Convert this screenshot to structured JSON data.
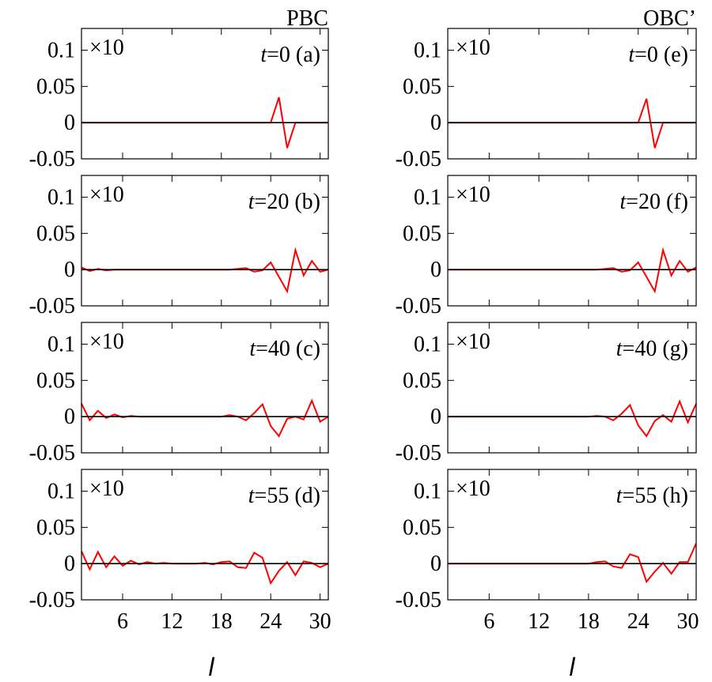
{
  "figure": {
    "column_titles": [
      "PBC",
      "OBC’"
    ],
    "xlabel": "l",
    "scale_label": "×10",
    "ytick_labels": [
      "0.1",
      "0.05",
      "0",
      "-0.05"
    ],
    "xtick_labels": [
      "6",
      "12",
      "18",
      "24",
      "30"
    ]
  },
  "chart_data": [
    {
      "type": "line",
      "panel": "(a)",
      "time_label": "t=0",
      "boundary": "PBC",
      "scale": "×10",
      "xlim": [
        1,
        31
      ],
      "ylim": [
        -0.05,
        0.13
      ],
      "xticks": [
        6,
        12,
        18,
        24,
        30
      ],
      "yticks": [
        0.1,
        0.05,
        0,
        -0.05
      ],
      "series": [
        {
          "color": "#ff0000",
          "x": [
            1,
            2,
            3,
            4,
            5,
            6,
            7,
            8,
            9,
            10,
            11,
            12,
            13,
            14,
            15,
            16,
            17,
            18,
            19,
            20,
            21,
            22,
            23,
            24,
            25,
            26,
            27,
            28,
            29,
            30,
            31
          ],
          "y": [
            0,
            0,
            0,
            0,
            0,
            0,
            0,
            0,
            0,
            0,
            0,
            0,
            0,
            0,
            0,
            0,
            0,
            0,
            0,
            0,
            0,
            0,
            0,
            0,
            0.035,
            -0.035,
            0,
            0,
            0,
            0,
            0
          ]
        },
        {
          "color": "#000000",
          "x": [
            1,
            31
          ],
          "y": [
            0,
            0
          ]
        }
      ]
    },
    {
      "type": "line",
      "panel": "(b)",
      "time_label": "t=20",
      "boundary": "PBC",
      "scale": "×10",
      "xlim": [
        1,
        31
      ],
      "ylim": [
        -0.05,
        0.13
      ],
      "xticks": [
        6,
        12,
        18,
        24,
        30
      ],
      "yticks": [
        0.1,
        0.05,
        0,
        -0.05
      ],
      "series": [
        {
          "color": "#ff0000",
          "x": [
            1,
            2,
            3,
            4,
            5,
            6,
            7,
            8,
            9,
            10,
            11,
            12,
            13,
            14,
            15,
            16,
            17,
            18,
            19,
            20,
            21,
            22,
            23,
            24,
            25,
            26,
            27,
            28,
            29,
            30,
            31
          ],
          "y": [
            0.003,
            -0.002,
            0.001,
            -0.001,
            0,
            0,
            0,
            0,
            0,
            0,
            0,
            0,
            0,
            0,
            0,
            0,
            0,
            0,
            0,
            0.001,
            0.002,
            -0.003,
            -0.001,
            0.01,
            -0.01,
            -0.03,
            0.027,
            -0.008,
            0.012,
            -0.003,
            0
          ]
        },
        {
          "color": "#000000",
          "x": [
            1,
            31
          ],
          "y": [
            0,
            0
          ]
        }
      ]
    },
    {
      "type": "line",
      "panel": "(c)",
      "time_label": "t=40",
      "boundary": "PBC",
      "scale": "×10",
      "xlim": [
        1,
        31
      ],
      "ylim": [
        -0.05,
        0.13
      ],
      "xticks": [
        6,
        12,
        18,
        24,
        30
      ],
      "yticks": [
        0.1,
        0.05,
        0,
        -0.05
      ],
      "series": [
        {
          "color": "#ff0000",
          "x": [
            1,
            2,
            3,
            4,
            5,
            6,
            7,
            8,
            9,
            10,
            11,
            12,
            13,
            14,
            15,
            16,
            17,
            18,
            19,
            20,
            21,
            22,
            23,
            24,
            25,
            26,
            27,
            28,
            29,
            30,
            31
          ],
          "y": [
            0.018,
            -0.005,
            0.008,
            -0.002,
            0.003,
            -0.001,
            0.001,
            0,
            0,
            0,
            0,
            0,
            0,
            0,
            0,
            0,
            0,
            0,
            0.002,
            0,
            -0.005,
            0.005,
            0.017,
            -0.013,
            -0.027,
            -0.003,
            0,
            -0.004,
            0.022,
            -0.007,
            0
          ]
        },
        {
          "color": "#000000",
          "x": [
            1,
            31
          ],
          "y": [
            0,
            0
          ]
        }
      ]
    },
    {
      "type": "line",
      "panel": "(d)",
      "time_label": "t=55",
      "boundary": "PBC",
      "scale": "×10",
      "xlim": [
        1,
        31
      ],
      "ylim": [
        -0.05,
        0.13
      ],
      "xticks": [
        6,
        12,
        18,
        24,
        30
      ],
      "yticks": [
        0.1,
        0.05,
        0,
        -0.05
      ],
      "series": [
        {
          "color": "#ff0000",
          "x": [
            1,
            2,
            3,
            4,
            5,
            6,
            7,
            8,
            9,
            10,
            11,
            12,
            13,
            14,
            15,
            16,
            17,
            18,
            19,
            20,
            21,
            22,
            23,
            24,
            25,
            26,
            27,
            28,
            29,
            30,
            31
          ],
          "y": [
            0.017,
            -0.008,
            0.016,
            -0.005,
            0.01,
            -0.003,
            0.004,
            -0.001,
            0.002,
            0,
            0.001,
            0,
            0,
            0,
            0,
            0.001,
            -0.001,
            0.002,
            0.003,
            -0.005,
            -0.006,
            0.015,
            0.008,
            -0.027,
            -0.01,
            0.002,
            -0.016,
            0.003,
            0.001,
            -0.005,
            0
          ]
        },
        {
          "color": "#000000",
          "x": [
            1,
            31
          ],
          "y": [
            0,
            0
          ]
        }
      ]
    },
    {
      "type": "line",
      "panel": "(e)",
      "time_label": "t=0",
      "boundary": "OBC’",
      "scale": "×10",
      "xlim": [
        1,
        31
      ],
      "ylim": [
        -0.05,
        0.13
      ],
      "xticks": [
        6,
        12,
        18,
        24,
        30
      ],
      "yticks": [
        0.1,
        0.05,
        0,
        -0.05
      ],
      "series": [
        {
          "color": "#ff0000",
          "x": [
            1,
            2,
            3,
            4,
            5,
            6,
            7,
            8,
            9,
            10,
            11,
            12,
            13,
            14,
            15,
            16,
            17,
            18,
            19,
            20,
            21,
            22,
            23,
            24,
            25,
            26,
            27,
            28,
            29,
            30,
            31
          ],
          "y": [
            0,
            0,
            0,
            0,
            0,
            0,
            0,
            0,
            0,
            0,
            0,
            0,
            0,
            0,
            0,
            0,
            0,
            0,
            0,
            0,
            0,
            0,
            0,
            0,
            0.033,
            -0.035,
            0,
            0,
            0,
            0,
            0
          ]
        },
        {
          "color": "#000000",
          "x": [
            1,
            31
          ],
          "y": [
            0,
            0
          ]
        }
      ]
    },
    {
      "type": "line",
      "panel": "(f)",
      "time_label": "t=20",
      "boundary": "OBC’",
      "scale": "×10",
      "xlim": [
        1,
        31
      ],
      "ylim": [
        -0.05,
        0.13
      ],
      "xticks": [
        6,
        12,
        18,
        24,
        30
      ],
      "yticks": [
        0.1,
        0.05,
        0,
        -0.05
      ],
      "series": [
        {
          "color": "#ff0000",
          "x": [
            1,
            2,
            3,
            4,
            5,
            6,
            7,
            8,
            9,
            10,
            11,
            12,
            13,
            14,
            15,
            16,
            17,
            18,
            19,
            20,
            21,
            22,
            23,
            24,
            25,
            26,
            27,
            28,
            29,
            30,
            31
          ],
          "y": [
            0,
            0,
            0,
            0,
            0,
            0,
            0,
            0,
            0,
            0,
            0,
            0,
            0,
            0,
            0,
            0,
            0,
            0,
            0,
            0.001,
            0.002,
            -0.003,
            -0.001,
            0.01,
            -0.01,
            -0.03,
            0.027,
            -0.008,
            0.012,
            -0.003,
            0.003
          ]
        },
        {
          "color": "#000000",
          "x": [
            1,
            31
          ],
          "y": [
            0,
            0
          ]
        }
      ]
    },
    {
      "type": "line",
      "panel": "(g)",
      "time_label": "t=40",
      "boundary": "OBC’",
      "scale": "×10",
      "xlim": [
        1,
        31
      ],
      "ylim": [
        -0.05,
        0.13
      ],
      "xticks": [
        6,
        12,
        18,
        24,
        30
      ],
      "yticks": [
        0.1,
        0.05,
        0,
        -0.05
      ],
      "series": [
        {
          "color": "#ff0000",
          "x": [
            1,
            2,
            3,
            4,
            5,
            6,
            7,
            8,
            9,
            10,
            11,
            12,
            13,
            14,
            15,
            16,
            17,
            18,
            19,
            20,
            21,
            22,
            23,
            24,
            25,
            26,
            27,
            28,
            29,
            30,
            31
          ],
          "y": [
            0,
            0,
            0,
            0,
            0,
            0,
            0,
            0,
            0,
            0,
            0,
            0,
            0,
            0,
            0,
            0,
            0,
            0,
            0.001,
            0,
            -0.005,
            0.004,
            0.016,
            -0.012,
            -0.027,
            -0.006,
            0.002,
            -0.007,
            0.021,
            -0.008,
            0.018
          ]
        },
        {
          "color": "#000000",
          "x": [
            1,
            31
          ],
          "y": [
            0,
            0
          ]
        }
      ]
    },
    {
      "type": "line",
      "panel": "(h)",
      "time_label": "t=55",
      "boundary": "OBC’",
      "scale": "×10",
      "xlim": [
        1,
        31
      ],
      "ylim": [
        -0.05,
        0.13
      ],
      "xticks": [
        6,
        12,
        18,
        24,
        30
      ],
      "yticks": [
        0.1,
        0.05,
        0,
        -0.05
      ],
      "series": [
        {
          "color": "#ff0000",
          "x": [
            1,
            2,
            3,
            4,
            5,
            6,
            7,
            8,
            9,
            10,
            11,
            12,
            13,
            14,
            15,
            16,
            17,
            18,
            19,
            20,
            21,
            22,
            23,
            24,
            25,
            26,
            27,
            28,
            29,
            30,
            31
          ],
          "y": [
            0,
            0,
            0,
            0,
            0,
            0,
            0,
            0,
            0,
            0,
            0,
            0,
            0,
            0,
            0,
            0,
            0,
            0,
            0.002,
            0.003,
            -0.004,
            -0.006,
            0.013,
            0.009,
            -0.025,
            -0.011,
            0.001,
            -0.014,
            0.002,
            0.002,
            0.028
          ]
        },
        {
          "color": "#000000",
          "x": [
            1,
            31
          ],
          "y": [
            0,
            0
          ]
        }
      ]
    }
  ]
}
